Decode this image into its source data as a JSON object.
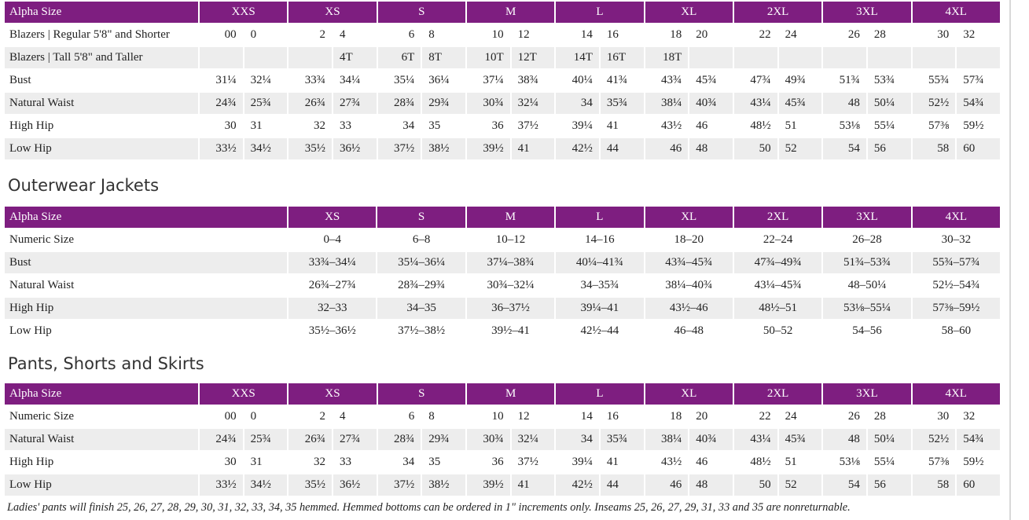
{
  "blazers": {
    "header": {
      "label": "Alpha Size",
      "sizes": [
        "XXS",
        "XS",
        "S",
        "M",
        "L",
        "XL",
        "2XL",
        "3XL",
        "4XL"
      ]
    },
    "rows": [
      {
        "label": "Blazers | Regular 5'8\" and Shorter",
        "values": [
          "00",
          "0",
          "2",
          "4",
          "6",
          "8",
          "10",
          "12",
          "14",
          "16",
          "18",
          "20",
          "22",
          "24",
          "26",
          "28",
          "30",
          "32"
        ]
      },
      {
        "label": "Blazers | Tall 5'8\" and Taller",
        "values": [
          null,
          null,
          null,
          "4T",
          "6T",
          "8T",
          "10T",
          "12T",
          "14T",
          "16T",
          "18T",
          null,
          null,
          null,
          null,
          null,
          null,
          null
        ]
      },
      {
        "label": "Bust",
        "values": [
          "31¼",
          "32¼",
          "33¾",
          "34¼",
          "35¼",
          "36¼",
          "37¼",
          "38¾",
          "40¼",
          "41¾",
          "43¾",
          "45¾",
          "47¾",
          "49¾",
          "51¾",
          "53¾",
          "55¾",
          "57¾"
        ]
      },
      {
        "label": "Natural Waist",
        "values": [
          "24¾",
          "25¾",
          "26¾",
          "27¾",
          "28¾",
          "29¾",
          "30¾",
          "32¼",
          "34",
          "35¾",
          "38¼",
          "40¾",
          "43¼",
          "45¾",
          "48",
          "50¼",
          "52½",
          "54¾"
        ]
      },
      {
        "label": "High Hip",
        "values": [
          "30",
          "31",
          "32",
          "33",
          "34",
          "35",
          "36",
          "37½",
          "39¼",
          "41",
          "43½",
          "46",
          "48½",
          "51",
          "53⅛",
          "55¼",
          "57⅜",
          "59½"
        ]
      },
      {
        "label": "Low Hip",
        "values": [
          "33½",
          "34½",
          "35½",
          "36½",
          "37½",
          "38½",
          "39½",
          "41",
          "42½",
          "44",
          "46",
          "48",
          "50",
          "52",
          "54",
          "56",
          "58",
          "60"
        ]
      }
    ]
  },
  "outerwear": {
    "heading": "Outerwear Jackets",
    "header": {
      "label": "Alpha Size",
      "sizes": [
        "XS",
        "S",
        "M",
        "L",
        "XL",
        "2XL",
        "3XL",
        "4XL"
      ]
    },
    "rows": [
      {
        "label": "Numeric Size",
        "values": [
          "0–4",
          "6–8",
          "10–12",
          "14–16",
          "18–20",
          "22–24",
          "26–28",
          "30–32"
        ]
      },
      {
        "label": "Bust",
        "values": [
          "33¾–34¼",
          "35¼–36¼",
          "37¼–38¾",
          "40¼–41¾",
          "43¾–45¾",
          "47¾–49¾",
          "51¾–53¾",
          "55¾–57¾"
        ]
      },
      {
        "label": "Natural Waist",
        "values": [
          "26¾–27¾",
          "28¾–29¾",
          "30¾–32¼",
          "34–35¾",
          "38¼–40¾",
          "43¼–45¾",
          "48–50¼",
          "52½–54¾"
        ]
      },
      {
        "label": "High Hip",
        "values": [
          "32–33",
          "34–35",
          "36–37½",
          "39¼–41",
          "43½–46",
          "48½–51",
          "53⅛–55¼",
          "57⅜–59½"
        ]
      },
      {
        "label": "Low Hip",
        "values": [
          "35½–36½",
          "37½–38½",
          "39½–41",
          "42½–44",
          "46–48",
          "50–52",
          "54–56",
          "58–60"
        ]
      }
    ]
  },
  "pants": {
    "heading": "Pants, Shorts and Skirts",
    "header": {
      "label": "Alpha Size",
      "sizes": [
        "XXS",
        "XS",
        "S",
        "M",
        "L",
        "XL",
        "2XL",
        "3XL",
        "4XL"
      ]
    },
    "rows": [
      {
        "label": "Numeric Size",
        "values": [
          "00",
          "0",
          "2",
          "4",
          "6",
          "8",
          "10",
          "12",
          "14",
          "16",
          "18",
          "20",
          "22",
          "24",
          "26",
          "28",
          "30",
          "32"
        ]
      },
      {
        "label": "Natural Waist",
        "values": [
          "24¾",
          "25¾",
          "26¾",
          "27¾",
          "28¾",
          "29¾",
          "30¾",
          "32¼",
          "34",
          "35¾",
          "38¼",
          "40¾",
          "43¼",
          "45¾",
          "48",
          "50¼",
          "52½",
          "54¾"
        ]
      },
      {
        "label": "High Hip",
        "values": [
          "30",
          "31",
          "32",
          "33",
          "34",
          "35",
          "36",
          "37½",
          "39¼",
          "41",
          "43½",
          "46",
          "48½",
          "51",
          "53⅛",
          "55¼",
          "57⅜",
          "59½"
        ]
      },
      {
        "label": "Low Hip",
        "values": [
          "33½",
          "34½",
          "35½",
          "36½",
          "37½",
          "38½",
          "39½",
          "41",
          "42½",
          "44",
          "46",
          "48",
          "50",
          "52",
          "54",
          "56",
          "58",
          "60"
        ]
      }
    ]
  },
  "footnote": "Ladies' pants will finish 25, 26, 27, 28, 29, 30, 31, 32, 33, 34, 35 hemmed. Hemmed bottoms can be ordered in 1\" increments only. Inseams 25, 26, 27, 29, 31, 33 and 35 are nonreturnable."
}
